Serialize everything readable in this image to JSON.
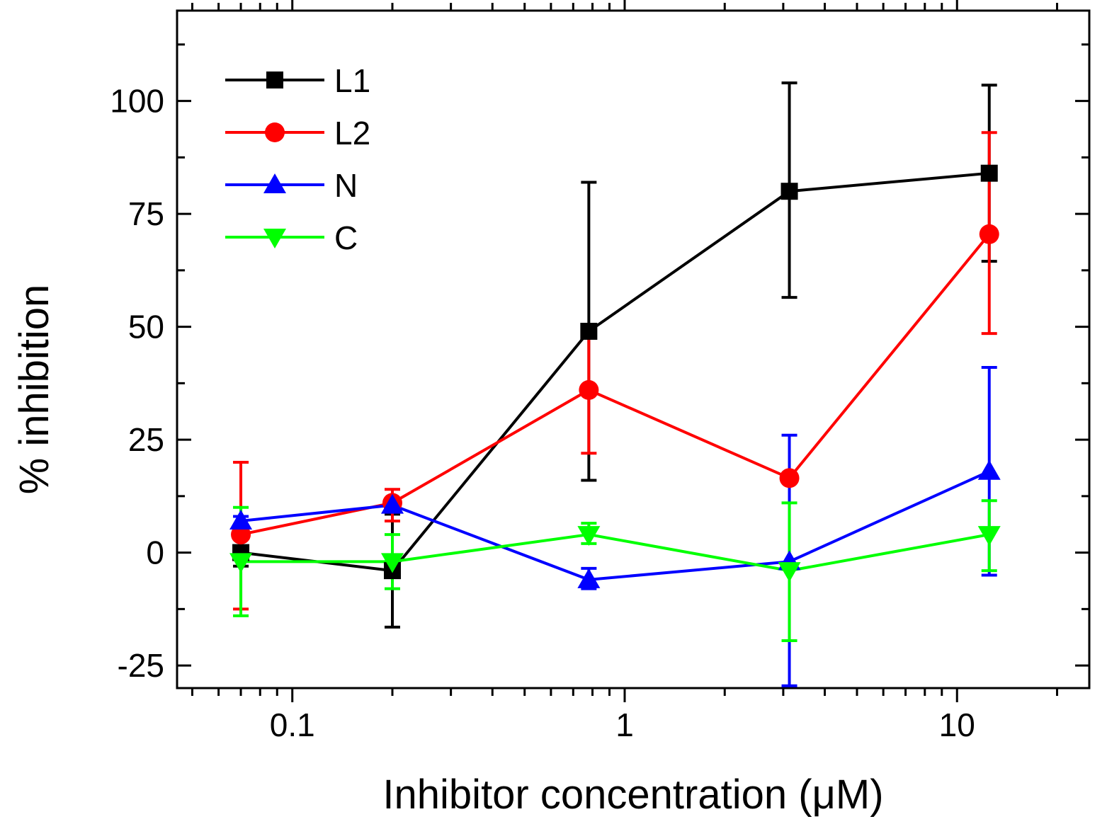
{
  "chart_data": {
    "type": "line",
    "title": "",
    "xlabel": "Inhibitor concentration (μM)",
    "ylabel": "% inhibition",
    "xscale": "log",
    "xlim": [
      0.045,
      25
    ],
    "ylim": [
      -30,
      120
    ],
    "xticks": [
      {
        "value": 0.1,
        "label": "0.1"
      },
      {
        "value": 1,
        "label": "1"
      },
      {
        "value": 10,
        "label": "10"
      }
    ],
    "yticks": [
      {
        "value": -25,
        "label": "-25"
      },
      {
        "value": 0,
        "label": "0"
      },
      {
        "value": 25,
        "label": "25"
      },
      {
        "value": 50,
        "label": "50"
      },
      {
        "value": 75,
        "label": "75"
      },
      {
        "value": 100,
        "label": "100"
      }
    ],
    "legend_position": "top-left",
    "grid": false,
    "x": [
      0.07,
      0.2,
      0.78,
      3.13,
      12.5
    ],
    "series": [
      {
        "name": "L1",
        "color": "#000000",
        "marker": "square",
        "values": [
          0,
          -4,
          49,
          80,
          84
        ],
        "err_low": [
          -3,
          -16.5,
          16,
          56.5,
          64.5
        ],
        "err_high": [
          3,
          8.5,
          82,
          104,
          103.5
        ]
      },
      {
        "name": "L2",
        "color": "#ff0000",
        "marker": "circle",
        "values": [
          4,
          11,
          36,
          16.5,
          70.5
        ],
        "err_low": [
          -12.5,
          7,
          22,
          16.5,
          48.5
        ],
        "err_high": [
          20,
          14,
          49.5,
          16.5,
          93
        ]
      },
      {
        "name": "N",
        "color": "#0000ff",
        "marker": "triangle-up",
        "values": [
          7,
          10.5,
          -6,
          -2,
          18
        ],
        "err_low": [
          6,
          9.5,
          -8,
          -29.5,
          -5
        ],
        "err_high": [
          8,
          11.5,
          -3.5,
          26,
          41
        ]
      },
      {
        "name": "C",
        "color": "#00ff00",
        "marker": "triangle-down",
        "values": [
          -2,
          -2,
          4,
          -4,
          4
        ],
        "err_low": [
          -14,
          -8,
          2,
          -19.5,
          -4
        ],
        "err_high": [
          10,
          4,
          6.5,
          11,
          11.5
        ]
      }
    ]
  }
}
